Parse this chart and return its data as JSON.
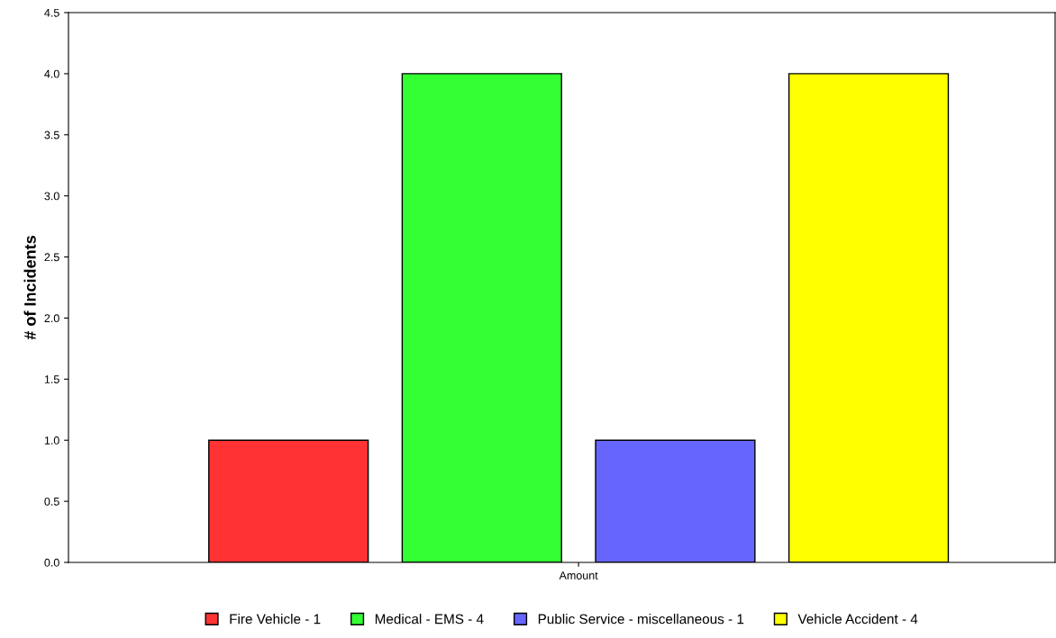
{
  "chart_data": {
    "type": "bar",
    "ylabel": "# of Incidents",
    "categories": [
      "Amount"
    ],
    "series": [
      {
        "name": "Fire Vehicle - 1",
        "color": "#ff3333",
        "values": [
          1
        ]
      },
      {
        "name": "Medical - EMS - 4",
        "color": "#33ff33",
        "values": [
          4
        ]
      },
      {
        "name": "Public Service - miscellaneous - 1",
        "color": "#6666ff",
        "values": [
          1
        ]
      },
      {
        "name": "Vehicle Accident - 4",
        "color": "#ffff00",
        "values": [
          4
        ]
      }
    ],
    "ylim": [
      0,
      4.5
    ],
    "yticks": [
      {
        "value": 0,
        "label": "0.0"
      },
      0.5,
      {
        "value": 1,
        "label": "1.0"
      },
      1.5,
      {
        "value": 2,
        "label": "2.0"
      },
      2.5,
      {
        "value": 3,
        "label": "3.0"
      },
      3.5,
      {
        "value": 4,
        "label": "4.0"
      },
      4.5
    ],
    "grid": false,
    "legend": "bottom"
  }
}
